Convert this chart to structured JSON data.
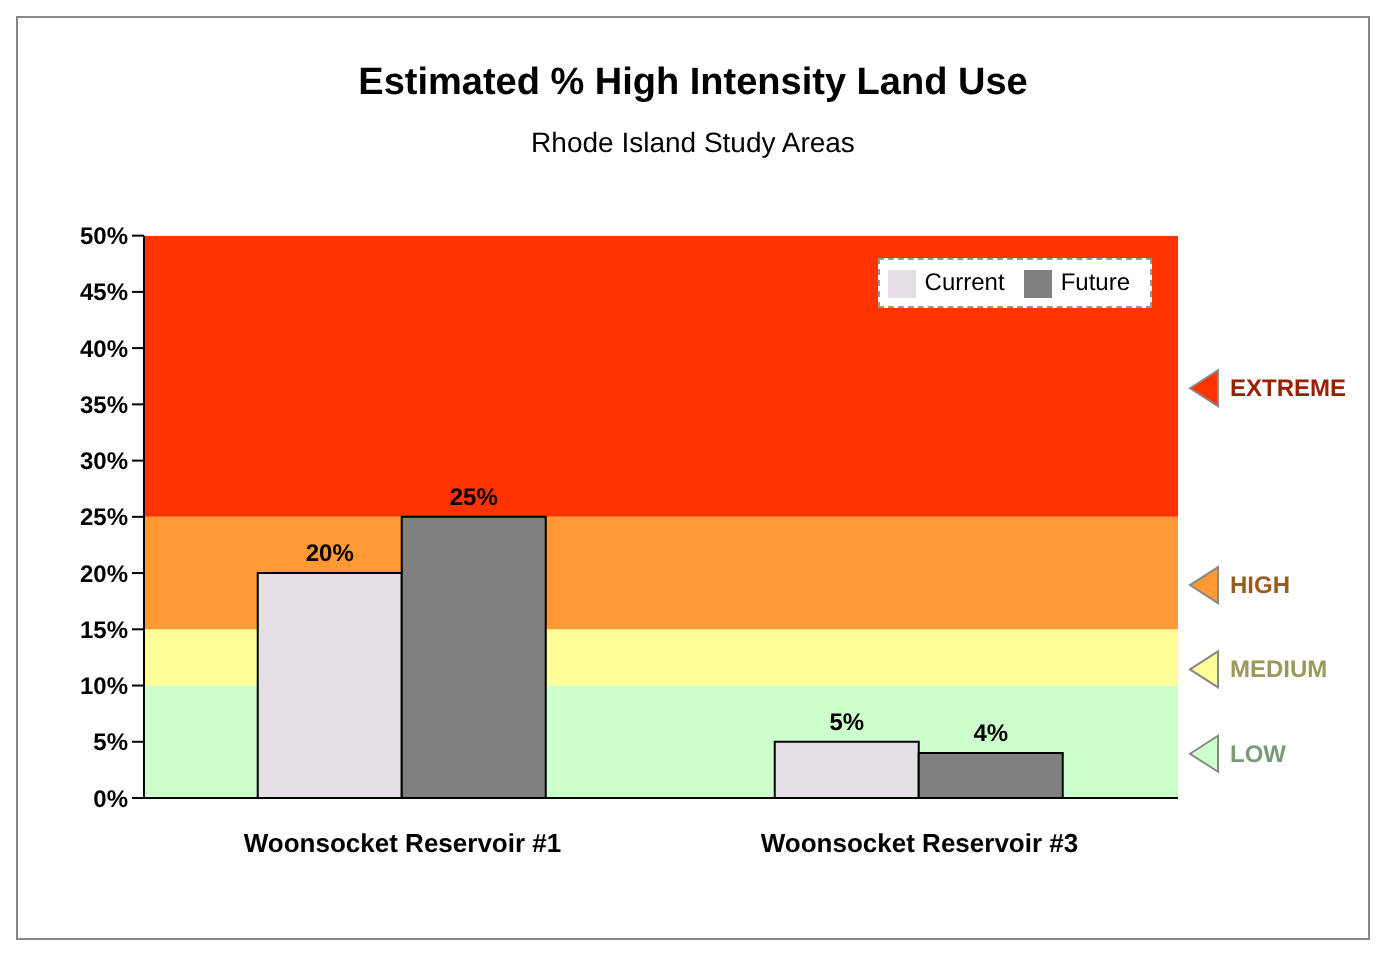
{
  "chart_data": {
    "type": "bar",
    "title": "Estimated % High Intensity Land Use",
    "subtitle": "Rhode Island Study Areas",
    "categories": [
      "Woonsocket Reservoir #1",
      "Woonsocket Reservoir #3"
    ],
    "series": [
      {
        "name": "Current",
        "color": "#e4dfe4",
        "values": [
          20,
          5
        ],
        "value_labels": [
          "20%",
          "5%"
        ]
      },
      {
        "name": "Future",
        "color": "#808080",
        "values": [
          25,
          4
        ],
        "value_labels": [
          "25%",
          "4%"
        ]
      }
    ],
    "ylim": [
      0,
      50
    ],
    "yticks": [
      {
        "value": 0,
        "label": "0%"
      },
      {
        "value": 5,
        "label": "5%"
      },
      {
        "value": 10,
        "label": "10%"
      },
      {
        "value": 15,
        "label": "15%"
      },
      {
        "value": 20,
        "label": "20%"
      },
      {
        "value": 25,
        "label": "25%"
      },
      {
        "value": 30,
        "label": "30%"
      },
      {
        "value": 35,
        "label": "35%"
      },
      {
        "value": 40,
        "label": "40%"
      },
      {
        "value": 45,
        "label": "45%"
      },
      {
        "value": 50,
        "label": "50%"
      }
    ],
    "bands": [
      {
        "axis": "y",
        "from": 0,
        "to": 10,
        "label": "LOW",
        "color": "#ccffcc"
      },
      {
        "axis": "y",
        "from": 10,
        "to": 15,
        "label": "MEDIUM",
        "color": "#ffff99"
      },
      {
        "axis": "y",
        "from": 15,
        "to": 25,
        "label": "HIGH",
        "color": "#ff9933"
      },
      {
        "axis": "y",
        "from": 25,
        "to": 50,
        "label": "EXTREME",
        "color": "#ff3300"
      }
    ],
    "grid": false,
    "legend": "top right"
  }
}
